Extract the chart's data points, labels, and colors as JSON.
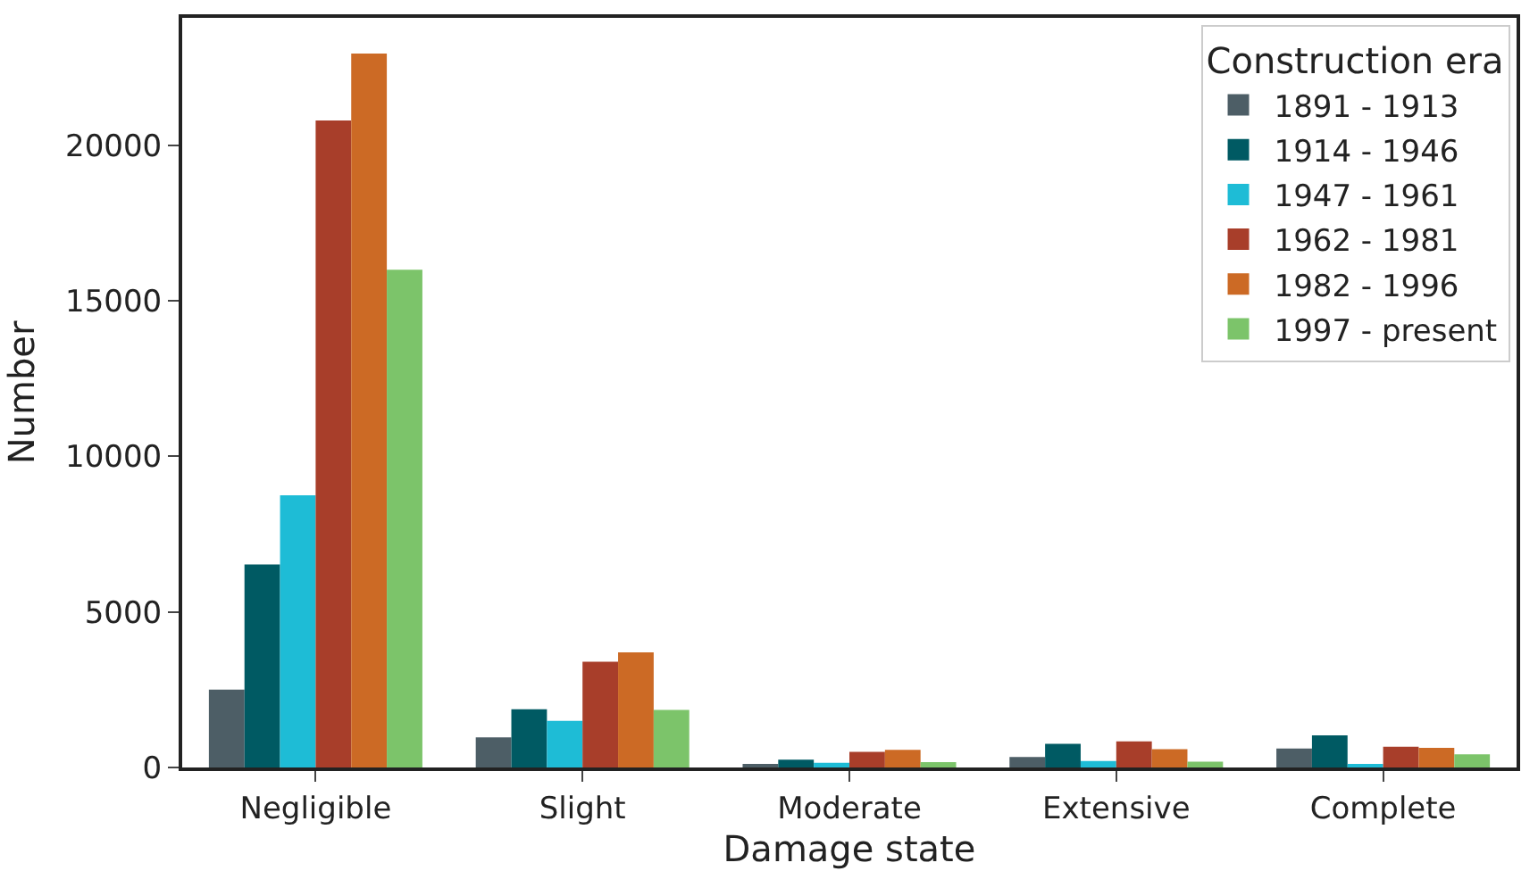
{
  "chart_data": {
    "type": "bar",
    "xlabel": "Damage state",
    "ylabel": "Number",
    "legend_title": "Construction era",
    "legend": "top right",
    "categories": [
      "Negligible",
      "Slight",
      "Moderate",
      "Extensive",
      "Complete"
    ],
    "ylim": [
      0,
      24100
    ],
    "yticks": [
      0,
      5000,
      10000,
      15000,
      20000
    ],
    "series": [
      {
        "name": "1891 - 1913",
        "color": "#4d5e66",
        "values": [
          2500,
          970,
          100,
          340,
          610
        ]
      },
      {
        "name": "1914 - 1946",
        "color": "#005a63",
        "values": [
          6530,
          1870,
          250,
          760,
          1030
        ]
      },
      {
        "name": "1947 - 1961",
        "color": "#1ebcd6",
        "values": [
          8750,
          1500,
          150,
          210,
          60
        ]
      },
      {
        "name": "1962 - 1981",
        "color": "#a83e2a",
        "values": [
          20800,
          3400,
          500,
          840,
          670
        ]
      },
      {
        "name": "1982 - 1996",
        "color": "#cc6a25",
        "values": [
          22950,
          3700,
          570,
          590,
          630
        ]
      },
      {
        "name": "1997 - present",
        "color": "#7cc46a",
        "values": [
          16000,
          1850,
          170,
          190,
          420
        ]
      }
    ]
  }
}
